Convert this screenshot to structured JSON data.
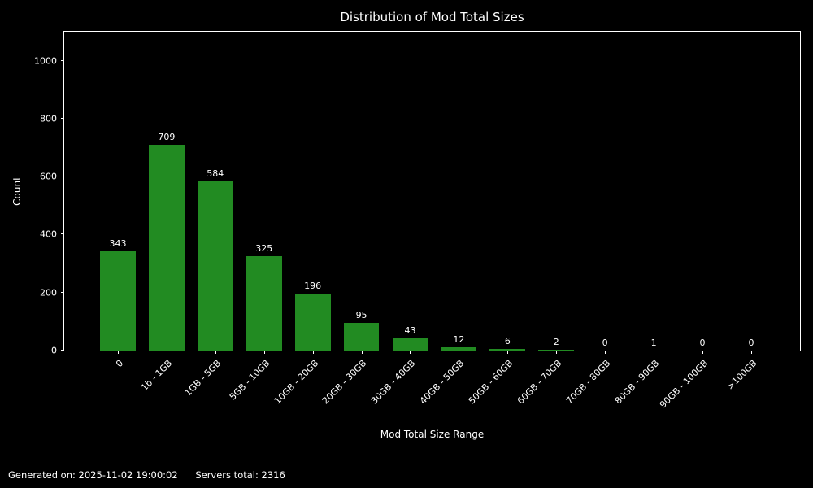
{
  "chart_data": {
    "type": "bar",
    "title": "Distribution of Mod Total Sizes",
    "xlabel": "Mod Total Size Range",
    "ylabel": "Count",
    "categories": [
      "0",
      "1b - 1GB",
      "1GB - 5GB",
      "5GB - 10GB",
      "10GB - 20GB",
      "20GB - 30GB",
      "30GB - 40GB",
      "40GB - 50GB",
      "50GB - 60GB",
      "60GB - 70GB",
      "70GB - 80GB",
      "80GB - 90GB",
      "90GB - 100GB",
      ">100GB"
    ],
    "values": [
      343,
      709,
      584,
      325,
      196,
      95,
      43,
      12,
      6,
      2,
      0,
      1,
      0,
      0
    ],
    "y_ticks": [
      0,
      200,
      400,
      600,
      800,
      1000
    ],
    "ylim": [
      0,
      1100
    ],
    "grid": false,
    "legend_position": "none",
    "bar_color": "#228B22",
    "background_color": "#000000",
    "text_color": "#ffffff",
    "axis_color": "#ffffff"
  },
  "footer": {
    "generated_on": "Generated on: 2025-11-02 19:00:02",
    "servers_total": "Servers total: 2316"
  }
}
